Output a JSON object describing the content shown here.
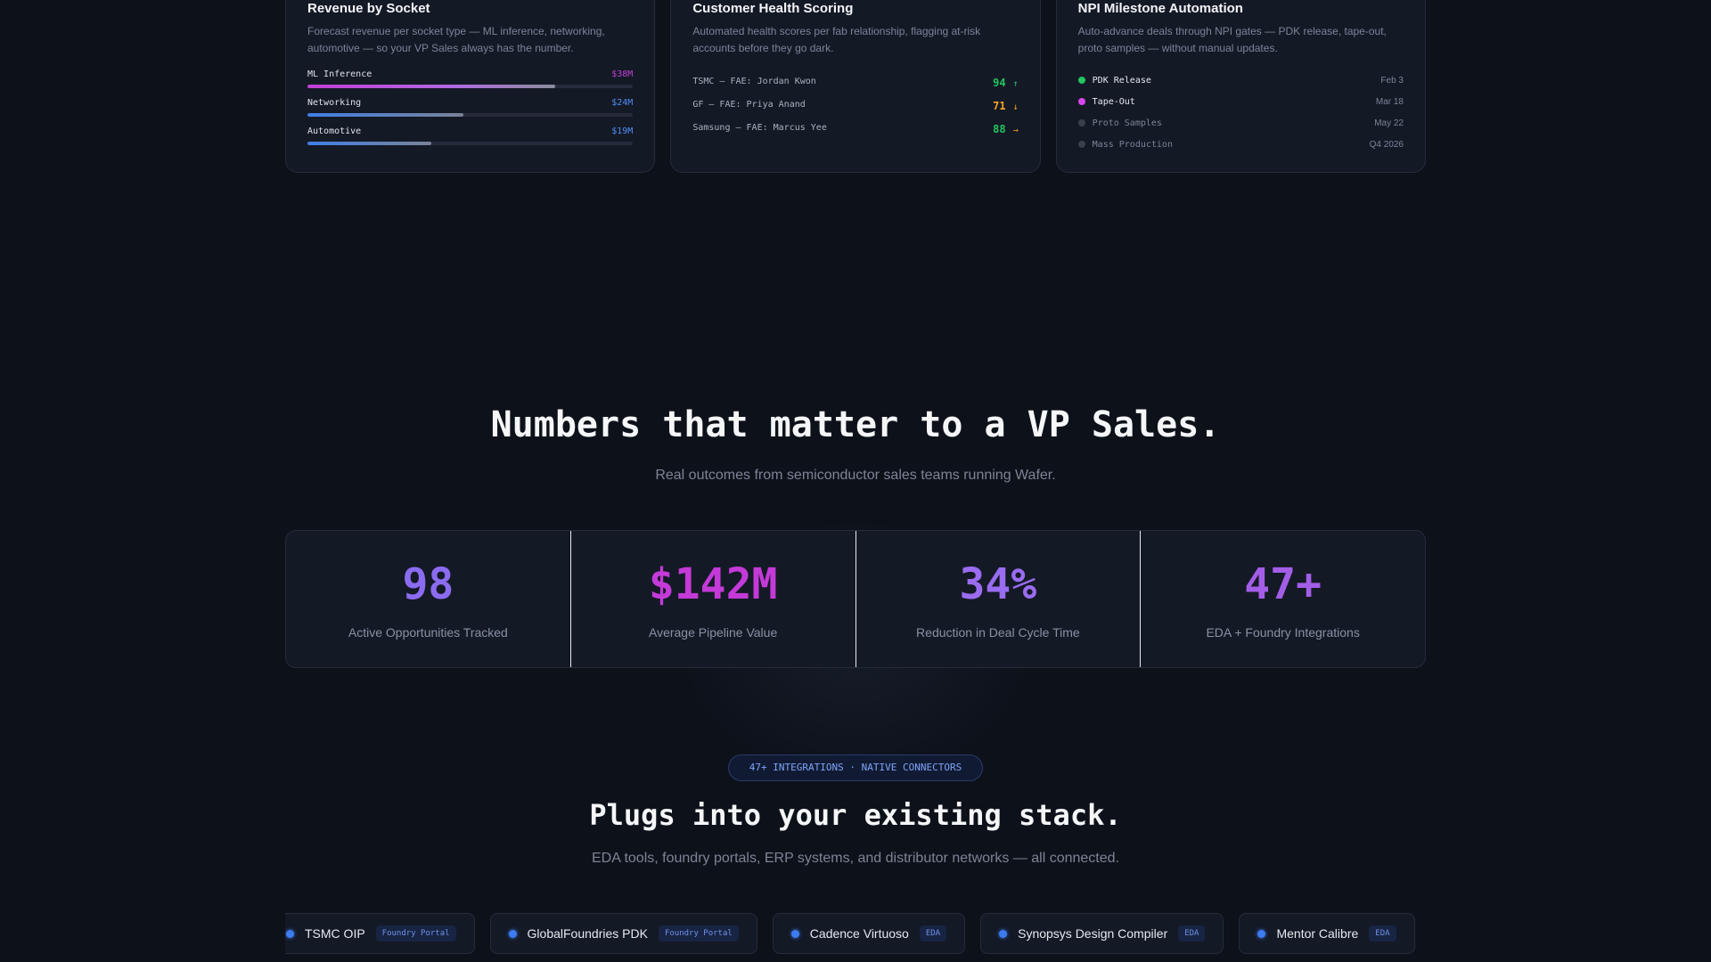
{
  "features": {
    "revenue": {
      "title": "Revenue by Socket",
      "description": "Forecast revenue per socket type — ML inference, networking, automotive — so your VP Sales always has the number.",
      "rows": [
        {
          "label": "ML Inference",
          "value": "$38M",
          "fraction": 0.76,
          "color": "#c23ed6",
          "gradient": "linear-gradient(90deg,#c23ed6,#b06ae0 60%,#8a8f9c)"
        },
        {
          "label": "Networking",
          "value": "$24M",
          "fraction": 0.48,
          "color": "#4d8ef5",
          "gradient": "linear-gradient(90deg,#3f7fe8,#7a8396)"
        },
        {
          "label": "Automotive",
          "value": "$19M",
          "fraction": 0.38,
          "color": "#4d8ef5",
          "gradient": "linear-gradient(90deg,#3f7fe8,#7a8396)"
        }
      ]
    },
    "health": {
      "title": "Customer Health Scoring",
      "description": "Automated health scores per fab relationship, flagging at-risk accounts before they go dark.",
      "rows": [
        {
          "label": "TSMC — FAE: Jordan Kwon",
          "score": "94",
          "trend": "↑",
          "color": "#22c55e"
        },
        {
          "label": "GF — FAE: Priya Anand",
          "score": "71",
          "trend": "↓",
          "color": "#f5a623"
        },
        {
          "label": "Samsung — FAE: Marcus Yee",
          "score": "88",
          "trend": "→",
          "color": "#22c55e",
          "trend_color": "#f5a623"
        }
      ]
    },
    "npi": {
      "title": "NPI Milestone Automation",
      "description": "Auto-advance deals through NPI gates — PDK release, tape-out, proto samples — without manual updates.",
      "rows": [
        {
          "label": "PDK Release",
          "date": "Feb 3",
          "dot": "#22c55e",
          "text_color": "#e6e9ef"
        },
        {
          "label": "Tape-Out",
          "date": "Mar 18",
          "dot": "#d946ef",
          "text_color": "#e6e9ef"
        },
        {
          "label": "Proto Samples",
          "date": "May 22",
          "dot": "#3a3f4c",
          "text_color": "#7c8496"
        },
        {
          "label": "Mass Production",
          "date": "Q4 2026",
          "dot": "#3a3f4c",
          "text_color": "#7c8496"
        }
      ]
    }
  },
  "numbers": {
    "title": "Numbers that matter to a VP Sales.",
    "subtitle": "Real outcomes from semiconductor sales teams running Wafer.",
    "stats": [
      {
        "value": "98",
        "label": "Active Opportunities Tracked",
        "color": "#8b6cf0"
      },
      {
        "value": "$142M",
        "label": "Average Pipeline Value",
        "color": "#c43ad8"
      },
      {
        "value": "34%",
        "label": "Reduction in Deal Cycle Time",
        "color": "#9a6cf0"
      },
      {
        "value": "47+",
        "label": "EDA + Foundry Integrations",
        "color": "#a35ee8"
      }
    ]
  },
  "integrations": {
    "badge": "47+ INTEGRATIONS · NATIVE CONNECTORS",
    "title": "Plugs into your existing stack.",
    "subtitle": "EDA tools, foundry portals, ERP systems, and distributor networks — all connected.",
    "items": [
      {
        "name": "TSMC OIP",
        "tag": "Foundry Portal"
      },
      {
        "name": "GlobalFoundries PDK",
        "tag": "Foundry Portal"
      },
      {
        "name": "Cadence Virtuoso",
        "tag": "EDA"
      },
      {
        "name": "Synopsys Design Compiler",
        "tag": "EDA"
      },
      {
        "name": "Mentor Calibre",
        "tag": "EDA"
      }
    ]
  }
}
